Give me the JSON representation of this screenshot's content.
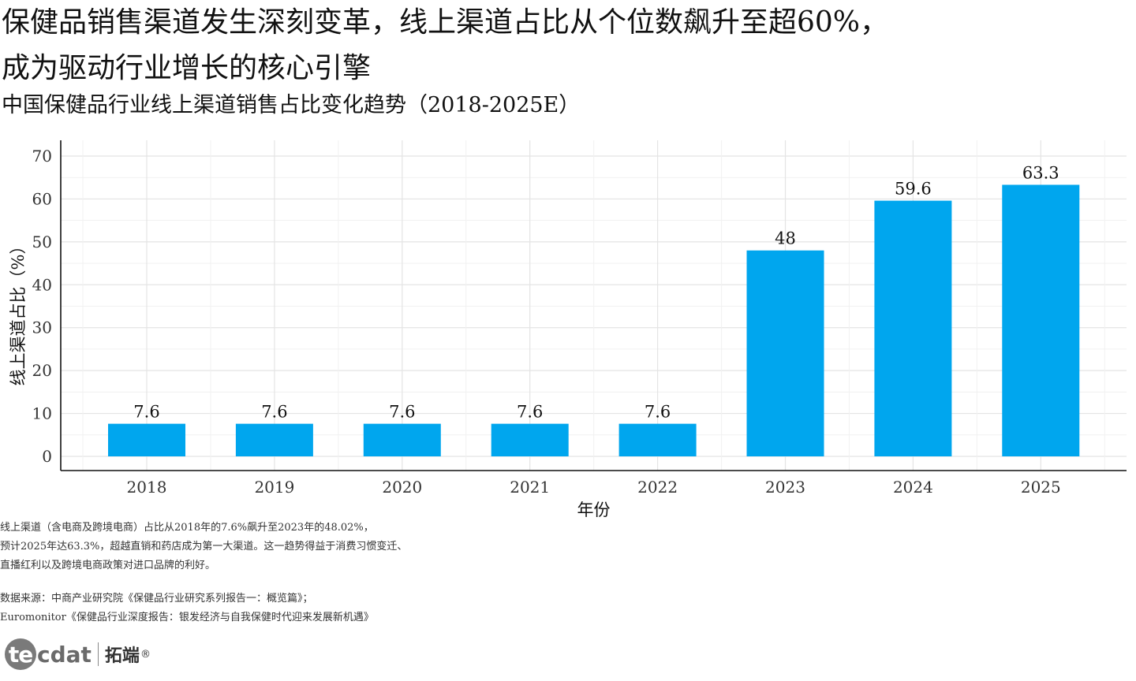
{
  "title": "保健品销售渠道发生深刻变革，线上渠道占比从个位数飙升至超60%，\n成为驱动行业增长的核心引擎",
  "title_line1": "保健品销售渠道发生深刻变革，线上渠道占比从个位数飙升至超60%，",
  "title_line2": "成为驱动行业增长的核心引擎",
  "subtitle": "中国保健品行业线上渠道销售占比变化趋势（2018-2025E）",
  "note": "线上渠道（含电商及跨境电商）占比从2018年的7.6%飙升至2023年的48.02%，\n预计2025年达63.3%，超越直销和药店成为第一大渠道。这一趋势得益于消费习惯变迁、\n直播红利以及跨境电商政策对进口品牌的利好。",
  "source": "数据来源：中商产业研究院《保健品行业研究系列报告一：概览篇》；\nEuromonitor《保健品行业深度报告：银发经济与自我保健时代迎来发展新机遇》",
  "logo": {
    "circle_text": "te",
    "word": "cdat",
    "cn": "拓端",
    "mark": "®"
  },
  "chart_data": {
    "type": "bar",
    "categories": [
      "2018",
      "2019",
      "2020",
      "2021",
      "2022",
      "2023",
      "2024",
      "2025"
    ],
    "values": [
      7.6,
      7.6,
      7.6,
      7.6,
      7.6,
      48,
      59.6,
      63.3
    ],
    "value_labels": [
      "7.6",
      "7.6",
      "7.6",
      "7.6",
      "7.6",
      "48",
      "59.6",
      "63.3"
    ],
    "xlabel": "年份",
    "ylabel": "线上渠道占比（%）",
    "ylim": [
      0,
      70
    ],
    "yticks": [
      0,
      10,
      20,
      30,
      40,
      50,
      60,
      70
    ],
    "bar_color": "#00a6ee",
    "grid": true,
    "legend": "none"
  }
}
